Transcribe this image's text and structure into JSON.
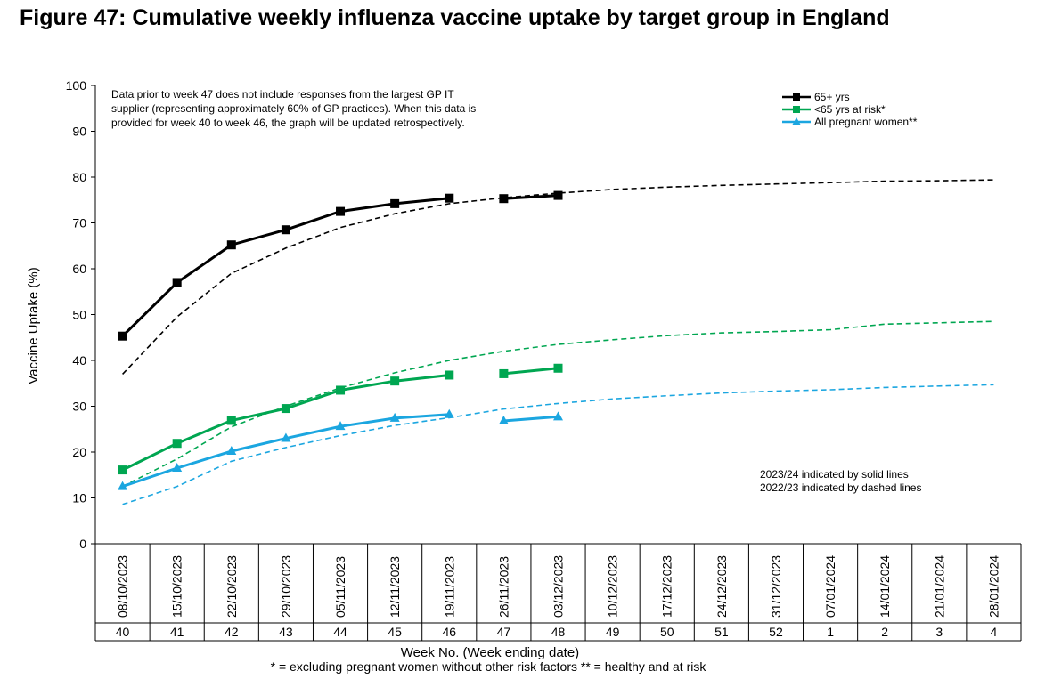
{
  "title": "Figure 47: Cumulative weekly influenza vaccine uptake by target group in England",
  "chart_data": {
    "type": "line",
    "ylabel": "Vaccine Uptake (%)",
    "xlabel": "Week No. (Week ending date)",
    "ylim": [
      0,
      100
    ],
    "yticks": [
      0,
      10,
      20,
      30,
      40,
      50,
      60,
      70,
      80,
      90,
      100
    ],
    "categories": [
      "08/10/2023",
      "15/10/2023",
      "22/10/2023",
      "29/10/2023",
      "05/11/2023",
      "12/11/2023",
      "19/11/2023",
      "26/11/2023",
      "03/12/2023",
      "10/12/2023",
      "17/12/2023",
      "24/12/2023",
      "31/12/2023",
      "07/01/2024",
      "14/01/2024",
      "21/01/2024",
      "28/01/2024"
    ],
    "week_numbers": [
      "40",
      "41",
      "42",
      "43",
      "44",
      "45",
      "46",
      "47",
      "48",
      "49",
      "50",
      "51",
      "52",
      "1",
      "2",
      "3",
      "4"
    ],
    "note": [
      "Data prior to week 47 does not include responses from the largest GP IT",
      "supplier (representing approximately 60% of GP practices). When this data is",
      "provided for week 40 to week 46, the graph will be updated retrospectively."
    ],
    "season_note": [
      "2023/24 indicated by solid lines",
      "2022/23 indicated by dashed lines"
    ],
    "footnote": "* =  excluding pregnant women without other risk factors ** = healthy and at risk",
    "legend_position": "top-right",
    "series": [
      {
        "name": "65+ yrs",
        "color": "#000000",
        "marker": "square",
        "values_2023": [
          45.3,
          57.0,
          65.2,
          68.5,
          72.5,
          74.2,
          75.4,
          75.3,
          76.0,
          null,
          null,
          null,
          null,
          null,
          null,
          null,
          null
        ],
        "values_2022": [
          37.0,
          49.5,
          59.0,
          64.5,
          69.0,
          72.0,
          74.2,
          75.5,
          76.5,
          77.3,
          77.8,
          78.2,
          78.5,
          78.8,
          79.1,
          79.2,
          79.4
        ]
      },
      {
        "name": "<65 yrs at risk*",
        "color": "#00A651",
        "marker": "square",
        "values_2023": [
          16.1,
          21.9,
          26.9,
          29.5,
          33.5,
          35.5,
          36.8,
          37.1,
          38.3,
          null,
          null,
          null,
          null,
          null,
          null,
          null,
          null
        ],
        "values_2022": [
          12.5,
          18.5,
          25.5,
          30.0,
          34.0,
          37.3,
          40.0,
          42.0,
          43.5,
          44.5,
          45.4,
          46.0,
          46.3,
          46.7,
          47.9,
          48.2,
          48.5
        ]
      },
      {
        "name": "All pregnant women**",
        "color": "#1BA6E0",
        "marker": "triangle",
        "values_2023": [
          12.5,
          16.5,
          20.2,
          23.0,
          25.6,
          27.4,
          28.2,
          26.8,
          27.7,
          null,
          null,
          null,
          null,
          null,
          null,
          null,
          null
        ],
        "values_2022": [
          8.6,
          12.5,
          18.0,
          21.0,
          23.6,
          25.8,
          27.5,
          29.4,
          30.6,
          31.6,
          32.3,
          32.9,
          33.3,
          33.6,
          34.1,
          34.4,
          34.7
        ]
      }
    ]
  }
}
